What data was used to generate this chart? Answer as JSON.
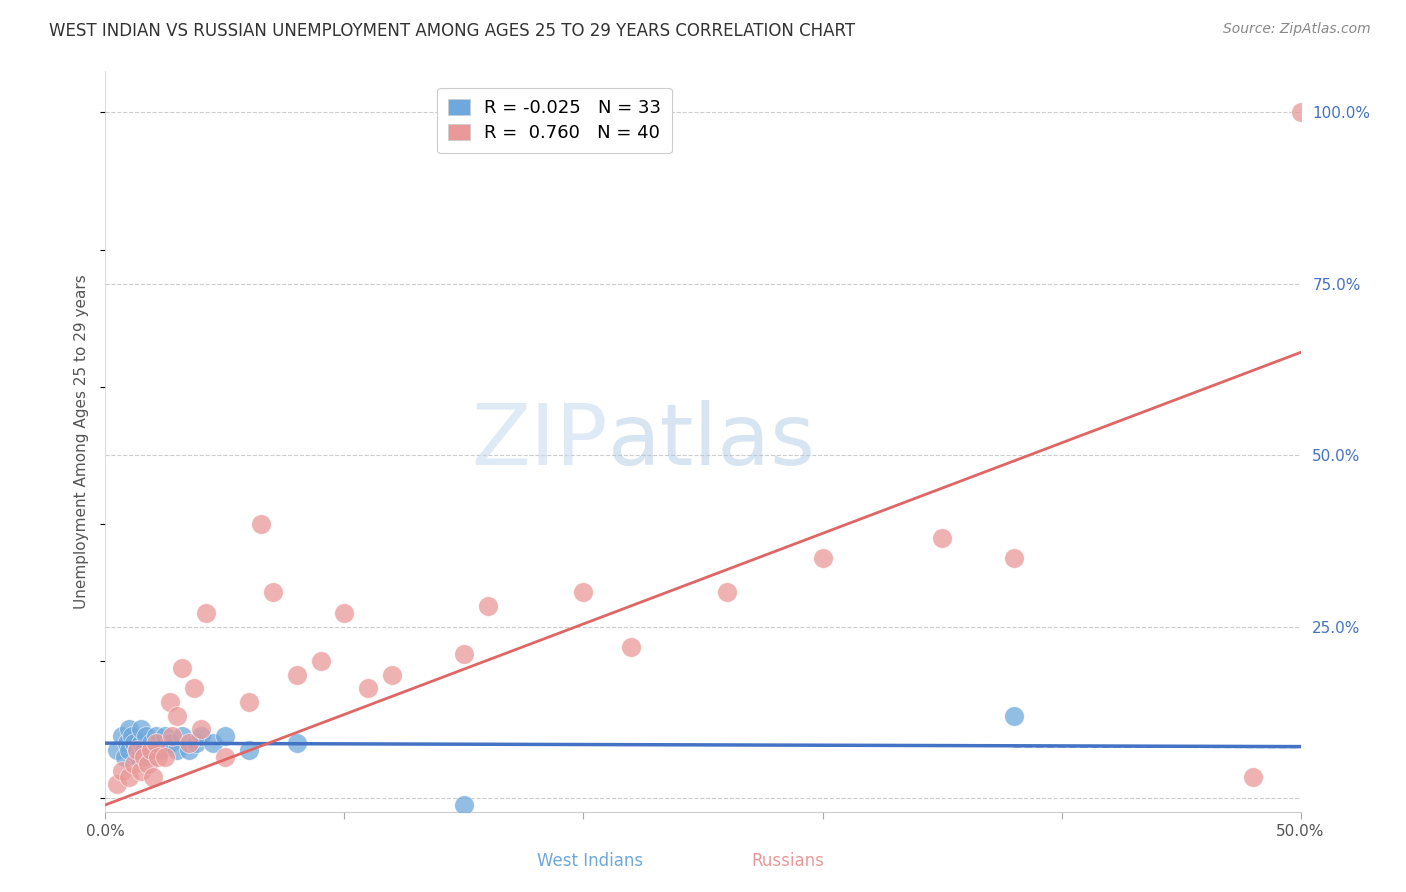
{
  "title": "WEST INDIAN VS RUSSIAN UNEMPLOYMENT AMONG AGES 25 TO 29 YEARS CORRELATION CHART",
  "source": "Source: ZipAtlas.com",
  "ylabel": "Unemployment Among Ages 25 to 29 years",
  "xlim": [
    0.0,
    0.5
  ],
  "ylim": [
    -0.02,
    1.06
  ],
  "xticks": [
    0.0,
    0.1,
    0.2,
    0.3,
    0.4,
    0.5
  ],
  "xticklabels": [
    "0.0%",
    "",
    "",
    "",
    "",
    "50.0%"
  ],
  "yticks": [
    0.0,
    0.25,
    0.5,
    0.75,
    1.0
  ],
  "yticklabels_right": [
    "",
    "25.0%",
    "50.0%",
    "75.0%",
    "100.0%"
  ],
  "west_indian_R": "-0.025",
  "west_indian_N": "33",
  "russian_R": "0.760",
  "russian_N": "40",
  "color_west_indian": "#6fa8dc",
  "color_russian": "#ea9999",
  "color_trendline_west_indian": "#4472c4",
  "color_trendline_russian": "#e06666",
  "watermark_zip": "ZIP",
  "watermark_atlas": "atlas",
  "west_indian_x": [
    0.005,
    0.007,
    0.008,
    0.009,
    0.01,
    0.01,
    0.011,
    0.012,
    0.013,
    0.014,
    0.015,
    0.015,
    0.016,
    0.017,
    0.018,
    0.019,
    0.02,
    0.021,
    0.022,
    0.023,
    0.025,
    0.027,
    0.03,
    0.032,
    0.035,
    0.038,
    0.04,
    0.045,
    0.05,
    0.06,
    0.08,
    0.15,
    0.38
  ],
  "west_indian_y": [
    0.07,
    0.09,
    0.06,
    0.08,
    0.1,
    0.07,
    0.09,
    0.08,
    0.07,
    0.06,
    0.08,
    0.1,
    0.07,
    0.09,
    0.06,
    0.08,
    0.07,
    0.09,
    0.08,
    0.07,
    0.09,
    0.08,
    0.07,
    0.09,
    0.07,
    0.08,
    0.09,
    0.08,
    0.09,
    0.07,
    0.08,
    -0.01,
    0.12
  ],
  "russian_x": [
    0.005,
    0.007,
    0.01,
    0.012,
    0.013,
    0.015,
    0.016,
    0.018,
    0.019,
    0.02,
    0.021,
    0.022,
    0.025,
    0.027,
    0.028,
    0.03,
    0.032,
    0.035,
    0.037,
    0.04,
    0.042,
    0.05,
    0.06,
    0.065,
    0.07,
    0.08,
    0.09,
    0.1,
    0.11,
    0.12,
    0.15,
    0.16,
    0.2,
    0.22,
    0.26,
    0.3,
    0.35,
    0.38,
    0.48,
    0.5
  ],
  "russian_y": [
    0.02,
    0.04,
    0.03,
    0.05,
    0.07,
    0.04,
    0.06,
    0.05,
    0.07,
    0.03,
    0.08,
    0.06,
    0.06,
    0.14,
    0.09,
    0.12,
    0.19,
    0.08,
    0.16,
    0.1,
    0.27,
    0.06,
    0.14,
    0.4,
    0.3,
    0.18,
    0.2,
    0.27,
    0.16,
    0.18,
    0.21,
    0.28,
    0.3,
    0.22,
    0.3,
    0.35,
    0.38,
    0.35,
    0.03,
    1.0
  ],
  "wi_trend_x": [
    0.0,
    0.5
  ],
  "wi_trend_y": [
    0.08,
    0.075
  ],
  "ru_trend_x": [
    0.0,
    0.5
  ],
  "ru_trend_y": [
    -0.01,
    0.65
  ]
}
